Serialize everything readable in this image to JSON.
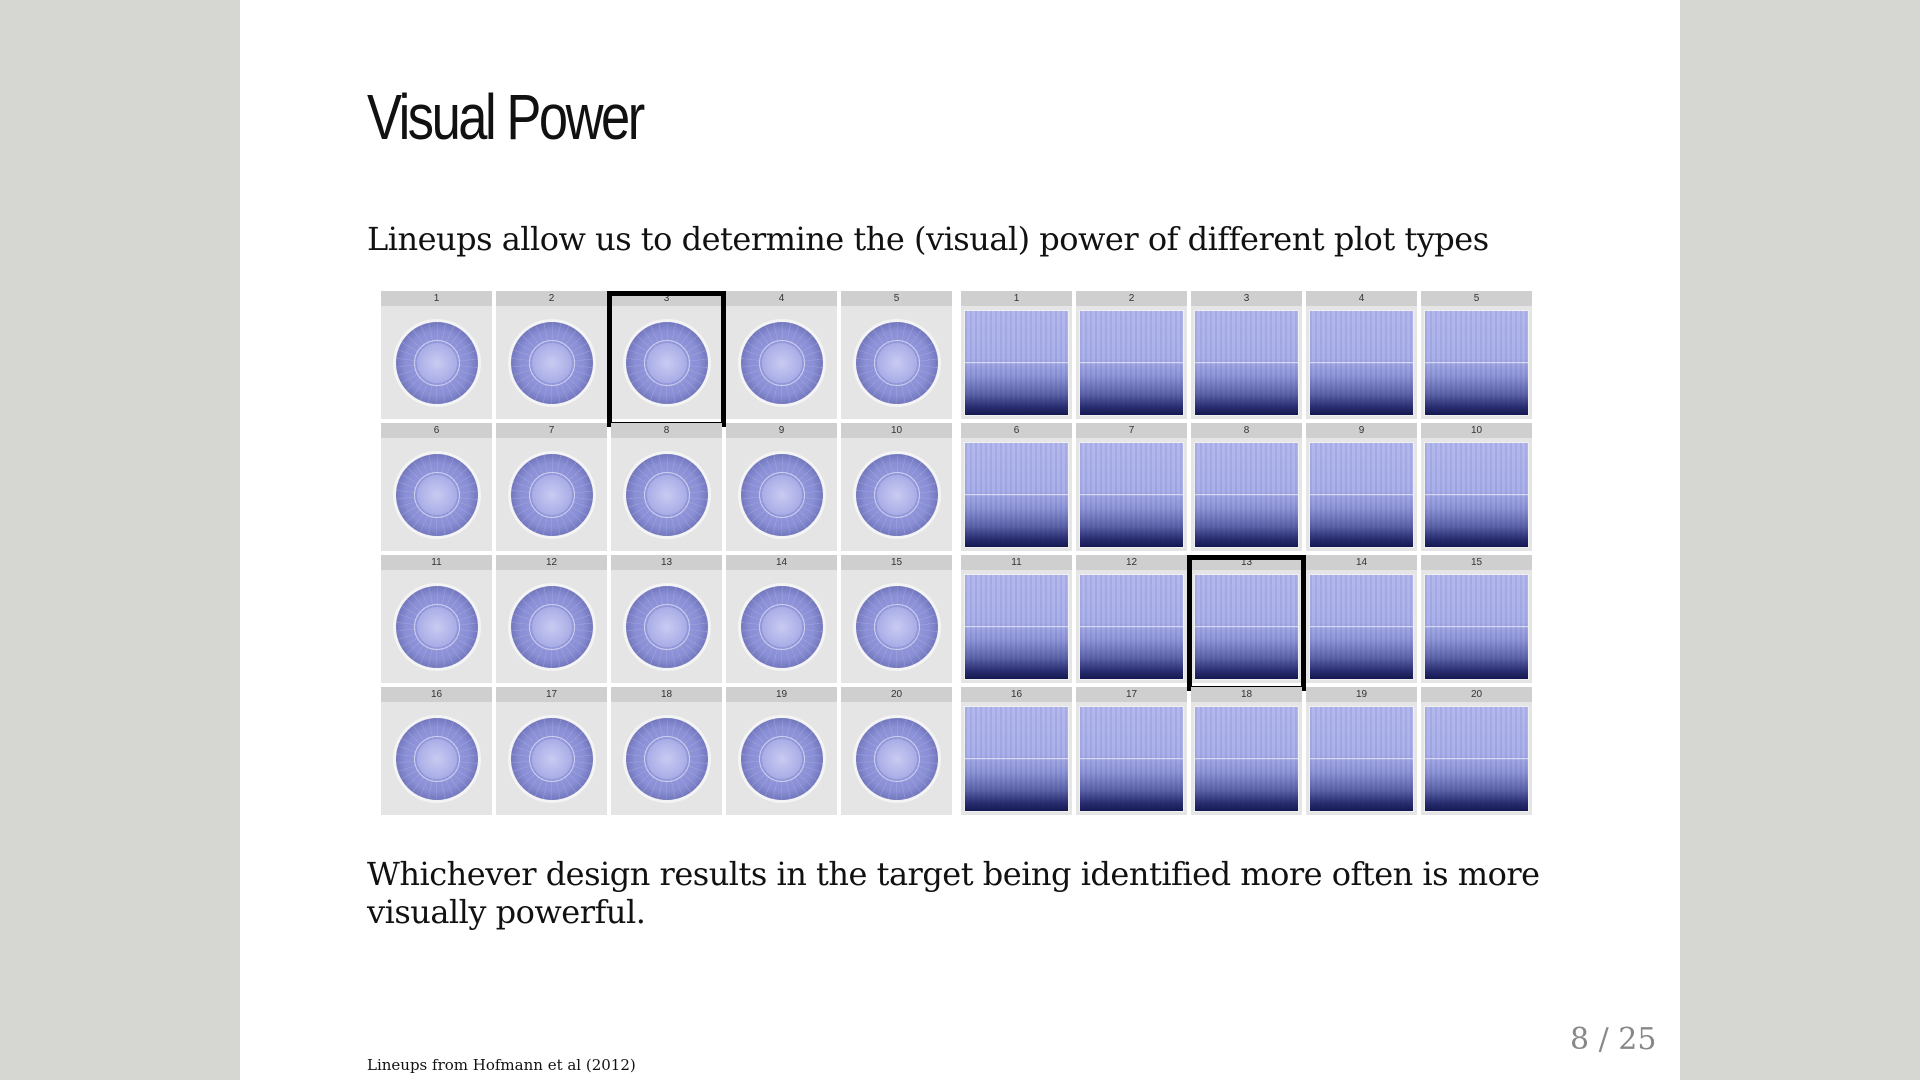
{
  "slide": {
    "title": "Visual Power",
    "intro": "Lineups allow us to determine the (visual) power of different plot types",
    "closing": "Whichever design results in the target being identified more often is more visually powerful.",
    "source": "Lineups from Hofmann et al (2012)",
    "page": "8 / 25"
  },
  "figure": {
    "panel_labels": [
      "1",
      "2",
      "3",
      "4",
      "5",
      "6",
      "7",
      "8",
      "9",
      "10",
      "11",
      "12",
      "13",
      "14",
      "15",
      "16",
      "17",
      "18",
      "19",
      "20"
    ],
    "left_lineup": {
      "plot_type": "polar",
      "highlighted_panel": 3
    },
    "right_lineup": {
      "plot_type": "bars",
      "highlighted_panel": 13
    },
    "colors": {
      "fill": "#9ea2e0",
      "dark_fill": "#2a2f72",
      "strip": "#cfcfcf",
      "highlight": "#000000"
    }
  }
}
